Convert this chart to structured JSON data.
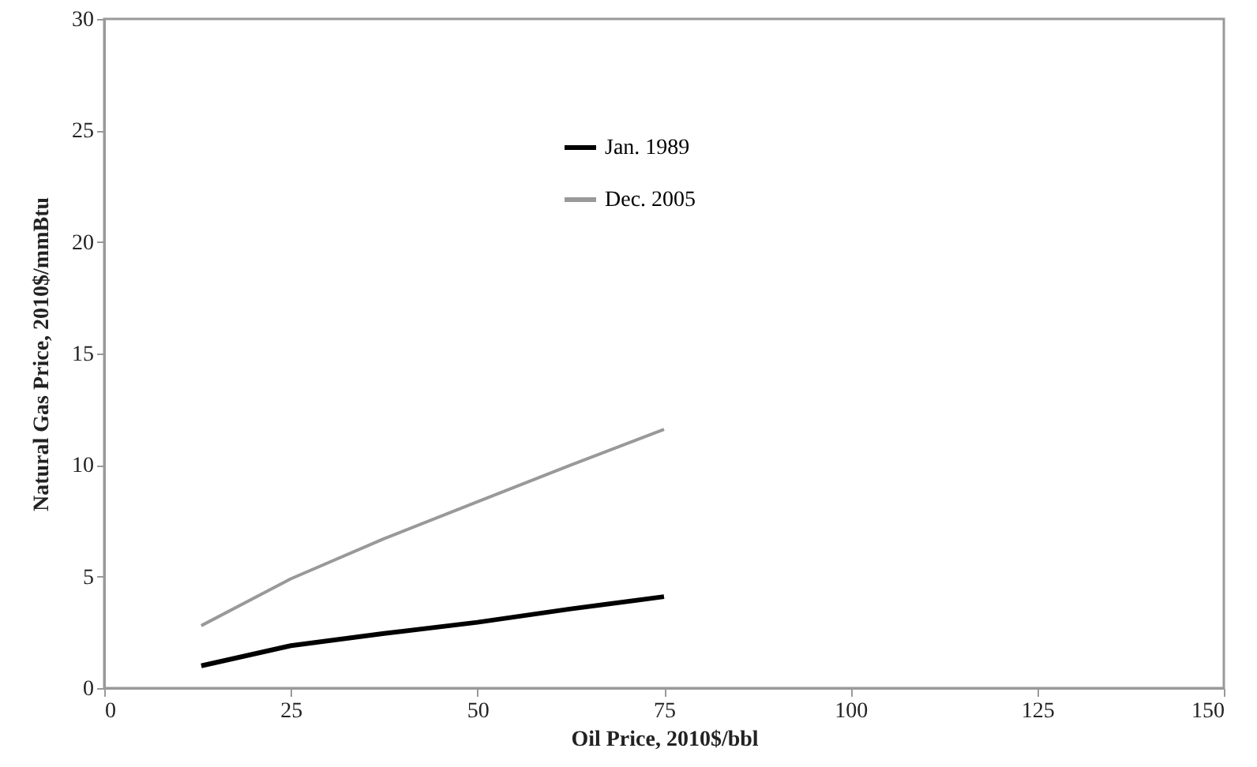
{
  "chart_data": {
    "type": "line",
    "xlabel": "Oil Price, 2010$/bbl",
    "ylabel": "Natural Gas Price, 2010$/mmBtu",
    "x": [
      13,
      25,
      37.5,
      50,
      62.5,
      75
    ],
    "series": [
      {
        "name": "Jan. 1989",
        "color": "#000000",
        "values": [
          1.0,
          1.9,
          2.45,
          2.95,
          3.55,
          4.1
        ]
      },
      {
        "name": "Dec. 2005",
        "color": "#999999",
        "values": [
          2.8,
          4.9,
          6.7,
          8.35,
          10.0,
          11.6
        ]
      }
    ],
    "xlim": [
      0,
      150
    ],
    "ylim": [
      0,
      30
    ],
    "xticks": [
      0,
      25,
      50,
      75,
      100,
      125,
      150
    ],
    "yticks": [
      0,
      5,
      10,
      15,
      20,
      25,
      30
    ],
    "grid": false,
    "legend": "top",
    "marker": "none",
    "line_style": "solid"
  }
}
